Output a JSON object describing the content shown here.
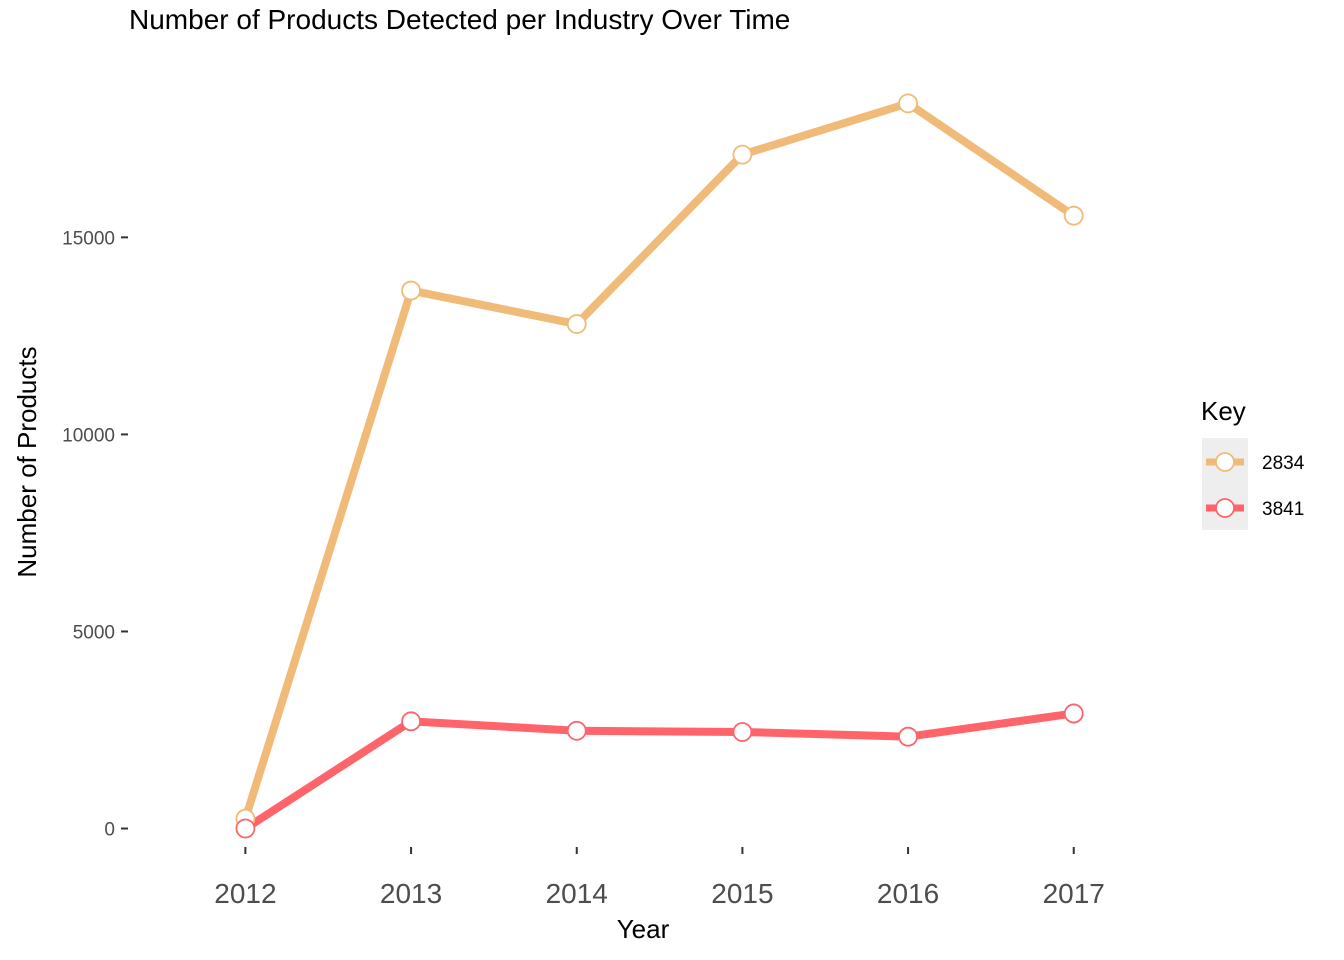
{
  "chart_data": {
    "type": "line",
    "title": "Number of Products Detected per Industry Over Time",
    "xlabel": "Year",
    "ylabel": "Number of Products",
    "x": [
      2012,
      2013,
      2014,
      2015,
      2016,
      2017
    ],
    "xtick_labels": [
      "2012",
      "2013",
      "2014",
      "2015",
      "2016",
      "2017"
    ],
    "yticks": [
      0,
      5000,
      10000,
      15000
    ],
    "ytick_labels": [
      "0",
      "5000",
      "10000",
      "15000"
    ],
    "xlim": [
      2011.4,
      2017.4
    ],
    "ylim": [
      -900,
      19500
    ],
    "grid": false,
    "legend": {
      "title": "Key",
      "position": "right"
    },
    "series": [
      {
        "name": "2834",
        "color": "#F0BB78",
        "values": [
          250,
          13650,
          12800,
          17100,
          18400,
          15550
        ]
      },
      {
        "name": "3841",
        "color": "#FF646B",
        "values": [
          0,
          2720,
          2480,
          2450,
          2330,
          2920
        ]
      }
    ],
    "marker_fill": "#ffffff"
  }
}
